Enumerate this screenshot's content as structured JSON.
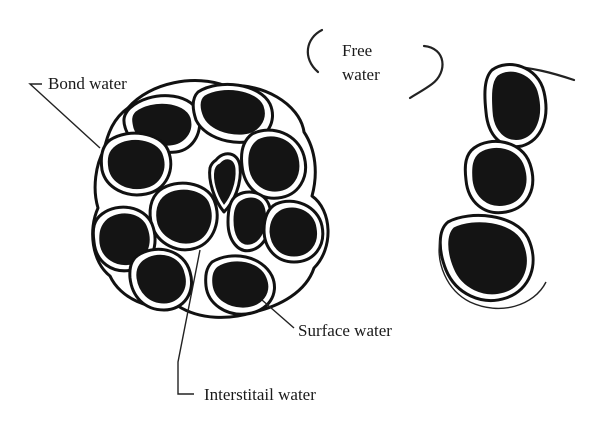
{
  "labels": {
    "bond_water": "Bond water",
    "free_water_line1": "Free",
    "free_water_line2": "water",
    "surface_water": "Surface water",
    "interstitial_water": "Interstitail water"
  },
  "colors": {
    "particle": "#141414",
    "outline": "#111111",
    "background": "#ffffff"
  }
}
